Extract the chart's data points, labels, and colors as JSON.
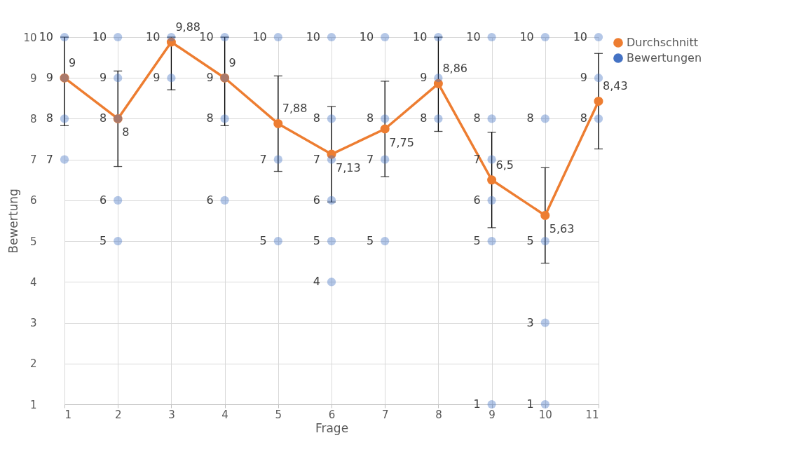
{
  "chart_data": {
    "type": "scatter",
    "xlabel": "Frage",
    "ylabel": "Bewertung",
    "xlim": [
      1,
      11
    ],
    "xticks": [
      1,
      2,
      3,
      4,
      5,
      6,
      7,
      8,
      9,
      10,
      11
    ],
    "ylim": [
      1,
      10
    ],
    "yticks": [
      1,
      2,
      3,
      4,
      5,
      6,
      7,
      8,
      9,
      10
    ],
    "grid": true,
    "legend": "right",
    "data_labels": true,
    "marker": "circle",
    "series": [
      {
        "name": "Durchschnitt",
        "type": "line",
        "color": "#ed7d31",
        "x": [
          1,
          2,
          3,
          4,
          5,
          6,
          7,
          8,
          9,
          10,
          11
        ],
        "values": [
          9,
          8,
          9.88,
          9,
          7.88,
          7.13,
          7.75,
          8.86,
          6.5,
          5.63,
          8.43
        ],
        "value_labels": [
          "9",
          "8",
          "9,88",
          "9",
          "7,88",
          "7,13",
          "7,75",
          "8,86",
          "6,5",
          "5,63",
          "8,43"
        ],
        "errors": [
          [
            7.83,
            10
          ],
          [
            6.83,
            9.17
          ],
          [
            8.71,
            10
          ],
          [
            7.83,
            10
          ],
          [
            6.71,
            9.05
          ],
          [
            5.96,
            8.3
          ],
          [
            6.58,
            8.92
          ],
          [
            7.69,
            10
          ],
          [
            5.33,
            7.67
          ],
          [
            4.46,
            6.8
          ],
          [
            7.26,
            9.6
          ]
        ]
      },
      {
        "name": "Bewertungen",
        "color": "#4472c4",
        "x": [
          1,
          1,
          1,
          1,
          2,
          2,
          2,
          2,
          2,
          3,
          3,
          4,
          4,
          4,
          4,
          5,
          5,
          5,
          6,
          6,
          6,
          6,
          6,
          6,
          7,
          7,
          7,
          7,
          8,
          8,
          8,
          9,
          9,
          9,
          9,
          9,
          9,
          10,
          10,
          10,
          10,
          10,
          11,
          11,
          11
        ],
        "values": [
          10,
          9,
          8,
          7,
          10,
          9,
          8,
          6,
          5,
          10,
          9,
          10,
          9,
          8,
          6,
          10,
          7,
          5,
          10,
          8,
          7,
          6,
          5,
          4,
          10,
          8,
          7,
          5,
          10,
          9,
          8,
          10,
          8,
          7,
          6,
          5,
          1,
          10,
          8,
          5,
          3,
          1,
          10,
          9,
          8
        ]
      }
    ]
  }
}
